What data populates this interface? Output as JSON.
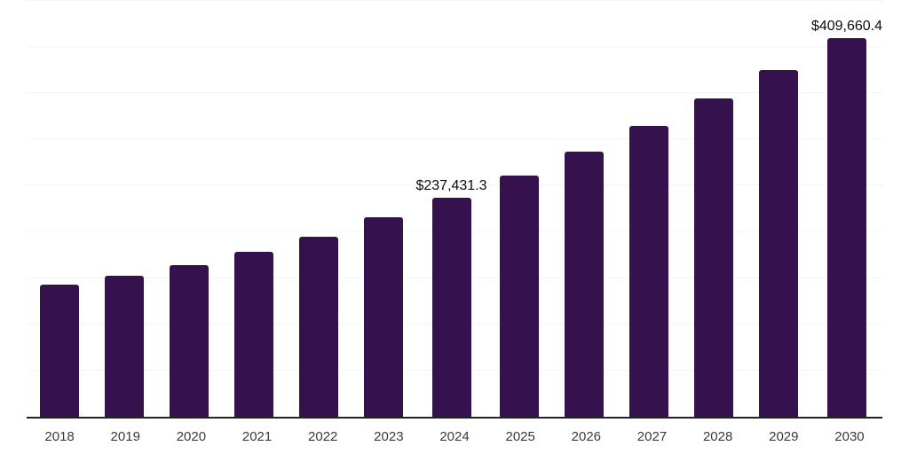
{
  "chart": {
    "background_color": "#ffffff",
    "bar_color": "#35124e",
    "gridline_color": "#f3f3f3",
    "axis_line_color": "#232323",
    "tick_label_color": "#3a3a3a",
    "value_label_color": "#0d0d0d"
  },
  "chart_data": {
    "type": "bar",
    "title": "",
    "xlabel": "",
    "ylabel": "",
    "categories": [
      "2018",
      "2019",
      "2020",
      "2021",
      "2022",
      "2023",
      "2024",
      "2025",
      "2026",
      "2027",
      "2028",
      "2029",
      "2030"
    ],
    "values": [
      142700,
      152200,
      164100,
      178700,
      195200,
      215700,
      237431.3,
      260600,
      286700,
      314700,
      344300,
      375300,
      409660.4
    ],
    "value_labels": [
      "",
      "",
      "",
      "",
      "",
      "",
      "$237,431.3",
      "",
      "",
      "",
      "",
      "",
      "$409,660.4"
    ],
    "ylim": [
      0,
      450000
    ],
    "gridline_step": 50000,
    "grid": true,
    "legend": "none",
    "y_axis_tick_labels_visible": false,
    "notes": "Only 2024 and 2030 bars carry explicit data labels; other values estimated from bar heights."
  }
}
